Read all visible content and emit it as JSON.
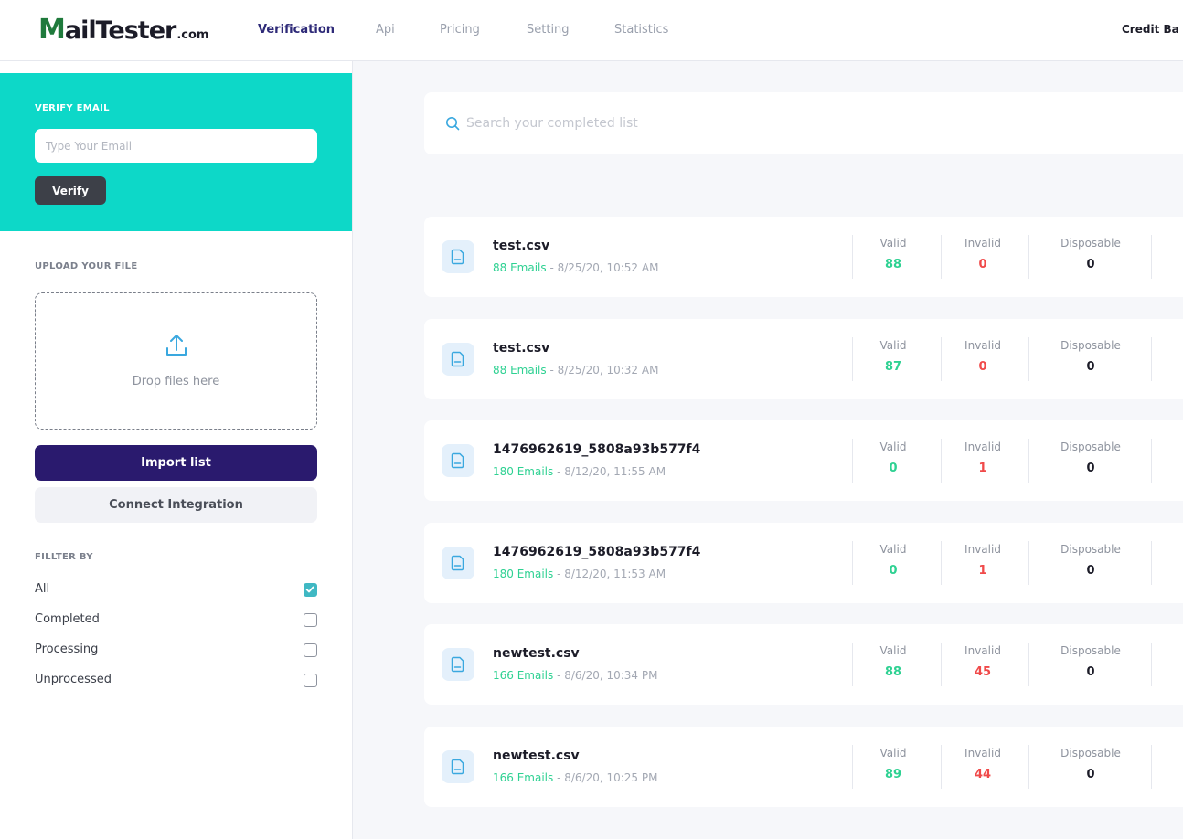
{
  "header": {
    "logo": {
      "m": "M",
      "main": "ailTester",
      "domain": ".com"
    },
    "nav": [
      {
        "label": "Verification",
        "active": true
      },
      {
        "label": "Api",
        "active": false
      },
      {
        "label": "Pricing",
        "active": false
      },
      {
        "label": "Setting",
        "active": false
      },
      {
        "label": "Statistics",
        "active": false
      }
    ],
    "credit_label": "Credit Ba"
  },
  "sidebar": {
    "verify": {
      "label": "VERIFY EMAIL",
      "placeholder": "Type Your Email",
      "value": "",
      "button": "Verify"
    },
    "upload": {
      "label": "UPLOAD YOUR FILE",
      "drop_text": "Drop files here",
      "import_button": "Import list",
      "connect_button": "Connect Integration"
    },
    "filter": {
      "label": "FILLTER BY",
      "options": [
        {
          "label": "All",
          "checked": true
        },
        {
          "label": "Completed",
          "checked": false
        },
        {
          "label": "Processing",
          "checked": false
        },
        {
          "label": "Unprocessed",
          "checked": false
        }
      ]
    }
  },
  "search": {
    "placeholder": "Search your completed list",
    "value": ""
  },
  "stat_labels": {
    "valid": "Valid",
    "invalid": "Invalid",
    "disposable": "Disposable"
  },
  "lists": [
    {
      "name": "test.csv",
      "emails": "88 Emails",
      "date": " - 8/25/20, 10:52 AM",
      "valid": "88",
      "invalid": "0",
      "disposable": "0"
    },
    {
      "name": "test.csv",
      "emails": "88 Emails",
      "date": " - 8/25/20, 10:32 AM",
      "valid": "87",
      "invalid": "0",
      "disposable": "0"
    },
    {
      "name": "1476962619_5808a93b577f4",
      "emails": "180 Emails",
      "date": " - 8/12/20, 11:55 AM",
      "valid": "0",
      "invalid": "1",
      "disposable": "0"
    },
    {
      "name": "1476962619_5808a93b577f4",
      "emails": "180 Emails",
      "date": " - 8/12/20, 11:53 AM",
      "valid": "0",
      "invalid": "1",
      "disposable": "0"
    },
    {
      "name": "newtest.csv",
      "emails": "166 Emails",
      "date": " - 8/6/20, 10:34 PM",
      "valid": "88",
      "invalid": "45",
      "disposable": "0"
    },
    {
      "name": "newtest.csv",
      "emails": "166 Emails",
      "date": " - 8/6/20, 10:25 PM",
      "valid": "89",
      "invalid": "44",
      "disposable": "0"
    }
  ],
  "colors": {
    "accent_teal": "#0dd8c8",
    "primary_purple": "#2a1a6e",
    "valid_green": "#2ed192",
    "invalid_red": "#f04a4a"
  }
}
